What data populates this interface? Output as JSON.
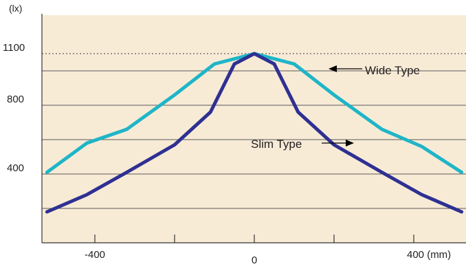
{
  "chart_data": {
    "type": "line",
    "y_unit": "(lx)",
    "x_unit": "(mm)",
    "xlim": [
      -520,
      520
    ],
    "ylim": [
      0,
      1200
    ],
    "grid": true,
    "background": "#f8ebd6",
    "reference_line": {
      "y": 1100,
      "style": "dotted"
    },
    "x_ticks": [
      {
        "value": -400,
        "label": "-400"
      },
      {
        "value": -200,
        "label": ""
      },
      {
        "value": 0,
        "label": "0"
      },
      {
        "value": 200,
        "label": ""
      },
      {
        "value": 400,
        "label": "400 (mm)"
      }
    ],
    "y_ticks": [
      {
        "value": 1100,
        "label": "1100"
      },
      {
        "value": 800,
        "label": "800"
      },
      {
        "value": 400,
        "label": "400"
      }
    ],
    "gridlines_y": [
      200,
      400,
      600,
      800,
      1000
    ],
    "series": [
      {
        "name": "Wide Type",
        "color": "#1fb5c8",
        "x": [
          -520,
          -420,
          -320,
          -200,
          -100,
          0,
          100,
          200,
          320,
          420,
          520
        ],
        "y": [
          410,
          580,
          660,
          860,
          1040,
          1100,
          1040,
          860,
          660,
          560,
          410
        ]
      },
      {
        "name": "Slim Type",
        "color": "#2e3092",
        "x": [
          -520,
          -420,
          -320,
          -200,
          -110,
          -50,
          0,
          50,
          110,
          200,
          320,
          420,
          520
        ],
        "y": [
          180,
          280,
          410,
          570,
          760,
          1040,
          1100,
          1040,
          760,
          570,
          410,
          280,
          180
        ]
      }
    ],
    "annotations": [
      {
        "text": "Wide Type",
        "series": "Wide Type"
      },
      {
        "text": "Slim Type",
        "series": "Slim Type"
      }
    ]
  }
}
